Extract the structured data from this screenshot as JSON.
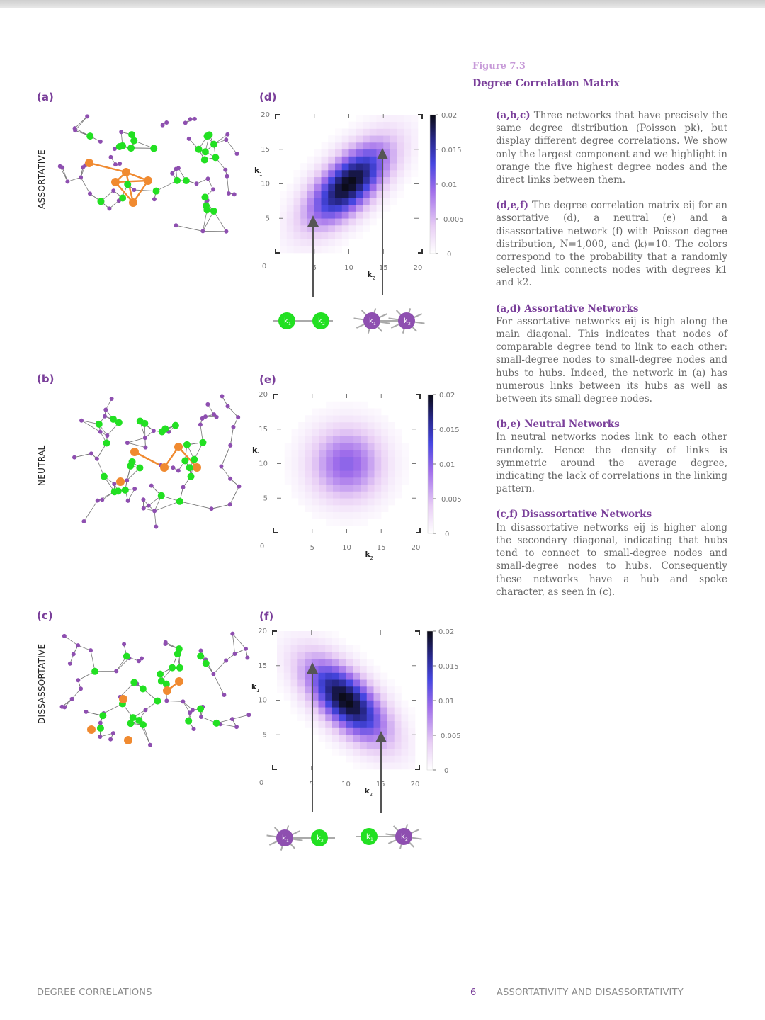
{
  "header": {
    "figure_number": "Figure 7.3",
    "figure_title": "Degree Correlation Matrix"
  },
  "panels": {
    "a": {
      "label": "(a)",
      "side": "ASSORTATIVE"
    },
    "b": {
      "label": "(b)",
      "side": "NEUTRAL"
    },
    "c": {
      "label": "(c)",
      "side": "DISSASSORTATIVE"
    },
    "d": {
      "label": "(d)"
    },
    "e": {
      "label": "(e)"
    },
    "f": {
      "label": "(f)"
    }
  },
  "node_labels": {
    "k1": "k1",
    "k2": "k2"
  },
  "caption": {
    "p1_head": "(a,b,c)",
    "p1_text": " Three networks that have precisely the same degree distribution (Poisson pk), but display different degree correlations. We show only the largest component and we highlight in orange the five highest degree nodes and the direct links between them.",
    "p2_head": "(d,e,f)",
    "p2_text": " The degree correlation matrix eij for an assortative (d), a neutral (e) and a disassortative network (f) with Poisson degree distribution, N=1,000, and ⟨k⟩=10.  The colors correspond to the probability that a randomly selected link connects nodes with degrees k1 and k2.",
    "p3_head": "(a,d) Assortative Networks",
    "p3_text": "For assortative networks eij is high along the main diagonal. This indicates that nodes of comparable degree tend to link to each other: small-degree nodes to small-degree nodes and hubs to hubs. Indeed, the network in (a) has numerous links between its hubs as well as between its small degree nodes.",
    "p4_head": "(b,e) Neutral Networks",
    "p4_text": "In neutral networks nodes link to each other randomly. Hence the density of links is symmetric around the average degree, indicating the lack of  correlations in the linking pattern.",
    "p5_head": "(c,f) Disassortative Networks",
    "p5_text": "In disassortative networks eij is higher along the secondary diagonal, indicating that hubs tend to connect to small-degree nodes and small-degree nodes to hubs. Consequently these networks have a hub and spoke character, as seen in (c)."
  },
  "footer": {
    "left": "DEGREE CORRELATIONS",
    "page": "6",
    "right": "ASSORTATIVITY AND DISASSORTATIVITY"
  },
  "colors": {
    "accent": "#7a3f9a",
    "node_green": "#22e022",
    "node_purple": "#8e4fb0",
    "hub_orange": "#f08a30"
  },
  "chart_data": [
    {
      "type": "heatmap",
      "panel": "(d)",
      "xlabel": "k2",
      "ylabel": "k1",
      "xlim": [
        0,
        20
      ],
      "ylim": [
        0,
        20
      ],
      "xticks": [
        "5",
        "10",
        "15",
        "20"
      ],
      "yticks": [
        "5",
        "10",
        "15",
        "20"
      ],
      "colorbar_ticks": [
        "0.02",
        "0.015",
        "0.01",
        "0.005",
        "0"
      ],
      "pattern": "main-diagonal",
      "peak": [
        10,
        10
      ],
      "peak_value": 0.02
    },
    {
      "type": "heatmap",
      "panel": "(e)",
      "xlabel": "k2",
      "ylabel": "k1",
      "xlim": [
        0,
        20
      ],
      "ylim": [
        0,
        20
      ],
      "xticks": [
        "5",
        "10",
        "15",
        "20"
      ],
      "yticks": [
        "5",
        "10",
        "15",
        "20"
      ],
      "colorbar_ticks": [
        "0.02",
        "0.015",
        "0.01",
        "0.005",
        "0"
      ],
      "pattern": "symmetric",
      "peak": [
        10,
        10
      ],
      "peak_value": 0.01
    },
    {
      "type": "heatmap",
      "panel": "(f)",
      "xlabel": "k2",
      "ylabel": "k1",
      "xlim": [
        0,
        20
      ],
      "ylim": [
        0,
        20
      ],
      "xticks": [
        "5",
        "10",
        "15",
        "20"
      ],
      "yticks": [
        "5",
        "10",
        "15",
        "20"
      ],
      "colorbar_ticks": [
        "0.02",
        "0.015",
        "0.01",
        "0.005",
        "0"
      ],
      "pattern": "secondary-diagonal",
      "peak": [
        10,
        10
      ],
      "peak_value": 0.02
    }
  ]
}
